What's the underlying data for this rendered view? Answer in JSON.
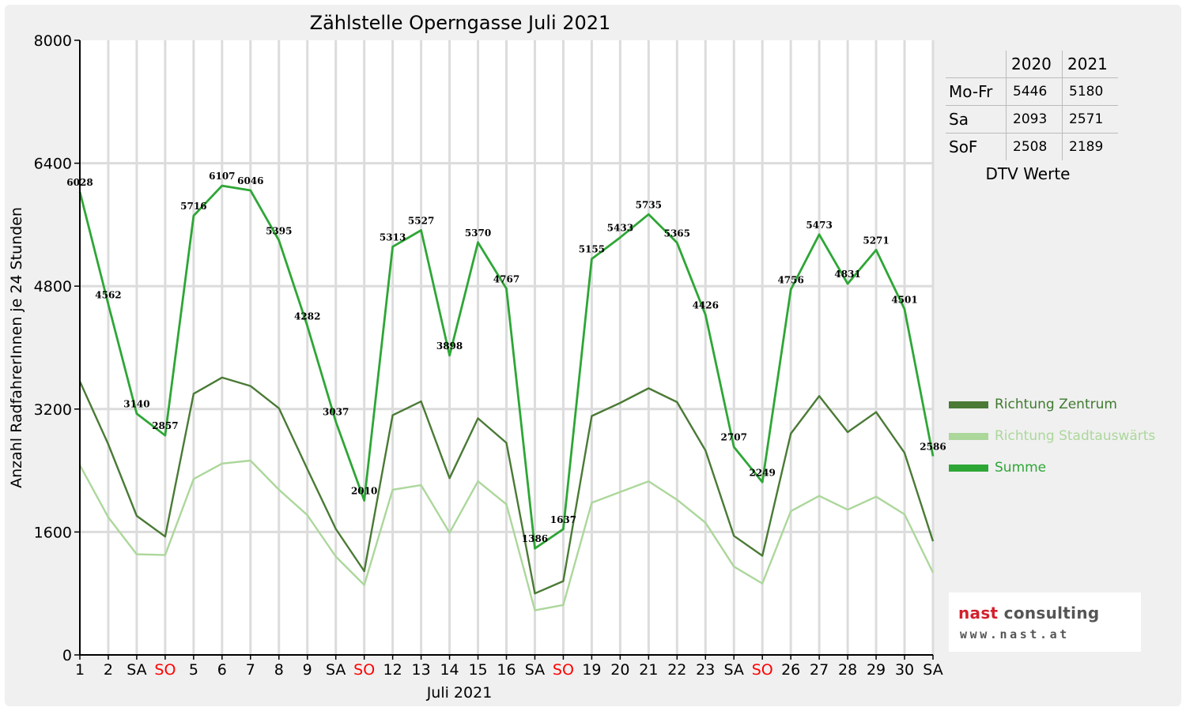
{
  "chart_data": {
    "type": "line",
    "title": "Zählstelle Operngasse Juli 2021",
    "xlabel": "Juli 2021",
    "ylabel": "Anzahl RadfahrerInnen je 24 Stunden",
    "ylim": [
      0,
      8000
    ],
    "yticks": [
      "0",
      "1600",
      "3200",
      "4800",
      "6400",
      "8000"
    ],
    "grid": true,
    "categories": [
      "1",
      "2",
      "SA",
      "SO",
      "5",
      "6",
      "7",
      "8",
      "9",
      "SA",
      "SO",
      "12",
      "13",
      "14",
      "15",
      "16",
      "SA",
      "SO",
      "19",
      "20",
      "21",
      "22",
      "23",
      "SA",
      "SO",
      "26",
      "27",
      "28",
      "29",
      "30",
      "SA"
    ],
    "weekend_sunday_color": "#ff0000",
    "series": [
      {
        "name": "Richtung Zentrum",
        "color": "#4a7a35",
        "values": [
          3560,
          2740,
          1810,
          1540,
          3400,
          3610,
          3500,
          3210,
          2420,
          1640,
          1090,
          3120,
          3300,
          2300,
          3080,
          2760,
          800,
          960,
          3110,
          3280,
          3470,
          3290,
          2660,
          1550,
          1290,
          2880,
          3370,
          2900,
          3160,
          2630,
          1480
        ]
      },
      {
        "name": "Richtung Stadtauswärts",
        "color": "#acd79b",
        "values": [
          2470,
          1790,
          1310,
          1300,
          2290,
          2490,
          2530,
          2150,
          1820,
          1280,
          910,
          2150,
          2210,
          1590,
          2260,
          1960,
          580,
          650,
          1980,
          2120,
          2260,
          2020,
          1720,
          1150,
          930,
          1870,
          2070,
          1890,
          2060,
          1830,
          1070
        ]
      },
      {
        "name": "Summe",
        "color": "#2ea636",
        "values": [
          6028,
          4562,
          3140,
          2857,
          5716,
          6107,
          6046,
          5395,
          4282,
          3037,
          2010,
          5313,
          5527,
          3898,
          5370,
          4767,
          1386,
          1637,
          5155,
          5433,
          5735,
          5365,
          4426,
          2707,
          2249,
          4756,
          5473,
          4831,
          5271,
          4501,
          2586
        ],
        "labels": [
          "6028",
          "4562",
          "3140",
          "2857",
          "5716",
          "6107",
          "6046",
          "5395",
          "4282",
          "3037",
          "2010",
          "5313",
          "5527",
          "3898",
          "5370",
          "4767",
          "1386",
          "1637",
          "5155",
          "5433",
          "5735",
          "5365",
          "4426",
          "2707",
          "2249",
          "4756",
          "5473",
          "4831",
          "5271",
          "4501",
          "2586"
        ]
      }
    ],
    "legend_position": "right"
  },
  "dtv_table": {
    "caption": "DTV Werte",
    "col_2020": "2020",
    "col_2021": "2021",
    "rows": [
      {
        "label": "Mo-Fr",
        "v2020": "5446",
        "v2021": "5180"
      },
      {
        "label": "Sa",
        "v2020": "2093",
        "v2021": "2571"
      },
      {
        "label": "SoF",
        "v2020": "2508",
        "v2021": "2189"
      }
    ]
  },
  "logo": {
    "brand": "nast",
    "brand_suffix": "consulting",
    "url": "www.nast.at",
    "brand_color": "#d3202d",
    "text_color": "#555555"
  }
}
